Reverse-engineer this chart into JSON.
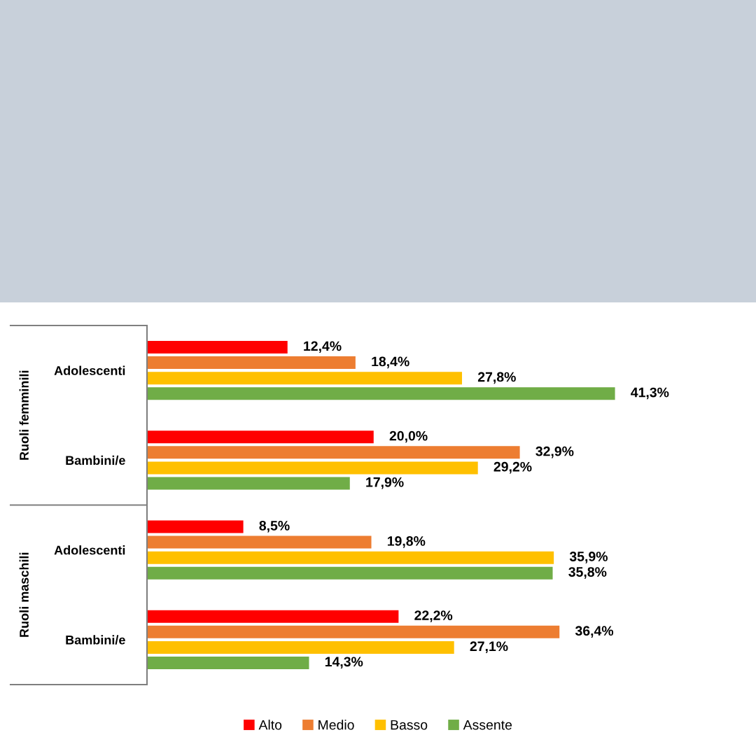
{
  "chart_data": {
    "type": "bar",
    "orientation": "horizontal",
    "categories": [
      "Adolescenti",
      "Bambini/e",
      "Adolescenti",
      "Bambini/e"
    ],
    "annotations": [
      "Ruoli femminili",
      "Ruoli maschili"
    ],
    "series": [
      {
        "name": "Alto",
        "color": "#ff0000",
        "values": [
          12.4,
          20.0,
          8.5,
          22.2
        ],
        "value_labels": [
          "12,4%",
          "20,0%",
          "8,5%",
          "22,2%"
        ]
      },
      {
        "name": "Medio",
        "color": "#ed7d31",
        "values": [
          18.4,
          32.9,
          19.8,
          36.4
        ],
        "value_labels": [
          "18,4%",
          "32,9%",
          "19,8%",
          "36,4%"
        ]
      },
      {
        "name": "Basso",
        "color": "#ffc000",
        "values": [
          27.8,
          29.2,
          35.9,
          27.1
        ],
        "value_labels": [
          "27,8%",
          "29,2%",
          "35,9%",
          "27,1%"
        ]
      },
      {
        "name": "Assente",
        "color": "#70ad47",
        "values": [
          41.3,
          17.9,
          35.8,
          14.3
        ],
        "value_labels": [
          "41,3%",
          "17,9%",
          "35,8%",
          "14,3%"
        ]
      }
    ],
    "legend": "bottom"
  }
}
